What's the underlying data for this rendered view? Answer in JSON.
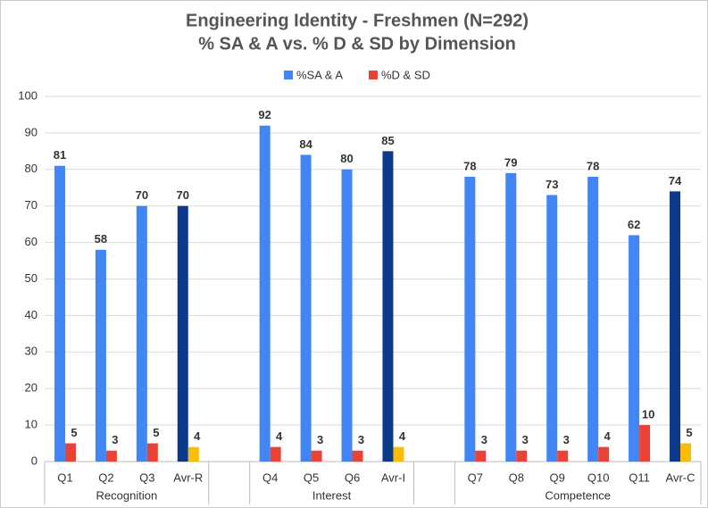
{
  "chart_data": {
    "type": "bar",
    "title": "Engineering Identity - Freshmen (N=292)",
    "subtitle": "% SA & A vs. % D & SD by Dimension",
    "categories": [
      "Q1",
      "Q2",
      "Q3",
      "Avr-R",
      null,
      "Q4",
      "Q5",
      "Q6",
      "Avr-I",
      null,
      "Q7",
      "Q8",
      "Q9",
      "Q10",
      "Q11",
      "Avr-C"
    ],
    "groups": [
      "Recognition",
      "Interest",
      "Competence"
    ],
    "series": [
      {
        "name": "%SA & A",
        "color": "#4285f4",
        "colors": [
          "#4285f4",
          "#4285f4",
          "#4285f4",
          "#0b3a8c",
          null,
          "#4285f4",
          "#4285f4",
          "#4285f4",
          "#0b3a8c",
          null,
          "#4285f4",
          "#4285f4",
          "#4285f4",
          "#4285f4",
          "#4285f4",
          "#0b3a8c"
        ],
        "values": [
          81,
          58,
          70,
          70,
          null,
          92,
          84,
          80,
          85,
          null,
          78,
          79,
          73,
          78,
          62,
          74
        ]
      },
      {
        "name": "%D & SD",
        "color": "#ea4335",
        "colors": [
          "#ea4335",
          "#ea4335",
          "#ea4335",
          "#fbbc04",
          null,
          "#ea4335",
          "#ea4335",
          "#ea4335",
          "#fbbc04",
          null,
          "#ea4335",
          "#ea4335",
          "#ea4335",
          "#ea4335",
          "#ea4335",
          "#fbbc04"
        ],
        "values": [
          5,
          3,
          5,
          4,
          null,
          4,
          3,
          3,
          4,
          null,
          3,
          3,
          3,
          4,
          10,
          5
        ]
      }
    ],
    "ylim": [
      0,
      100
    ],
    "yticks": [
      0,
      10,
      20,
      30,
      40,
      50,
      60,
      70,
      80,
      90,
      100
    ],
    "grid": true
  }
}
